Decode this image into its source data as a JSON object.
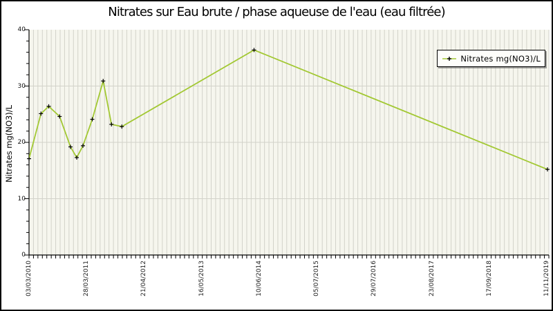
{
  "title": "Nitrates sur Eau brute / phase aqueuse de l'eau (eau filtrée)",
  "legend": {
    "label": "Nitrates mg(NO3)/L"
  },
  "y_axis": {
    "label": "Nitrates mg(NO3)/L",
    "major_ticks": [
      0,
      10,
      20,
      30,
      40
    ],
    "minor_tick_step": 2,
    "range": [
      0,
      40
    ]
  },
  "x_axis": {
    "tick_labels": [
      "03/03/2010",
      "28/03/2011",
      "21/04/2012",
      "16/05/2013",
      "10/06/2014",
      "05/07/2015",
      "29/07/2016",
      "23/08/2017",
      "17/09/2018",
      "11/11/2019"
    ],
    "minor_tick_count": 117
  },
  "colors": {
    "line": "#a2c832",
    "marker": "#000000",
    "plot_background": "#f6f6ee",
    "grid": "#d2d2c9",
    "axis": "#000000",
    "text": "#000000"
  },
  "chart_data": {
    "type": "line",
    "title": "Nitrates sur Eau brute / phase aqueuse de l'eau (eau filtrée)",
    "xlabel": "",
    "ylabel": "Nitrates mg(NO3)/L",
    "ylim": [
      0,
      40
    ],
    "y_major_ticks": [
      0,
      10,
      20,
      30,
      40
    ],
    "y_minor_tick_step": 2,
    "x_tick_labels": [
      "03/03/2010",
      "28/03/2011",
      "21/04/2012",
      "16/05/2013",
      "10/06/2014",
      "05/07/2015",
      "29/07/2016",
      "23/08/2017",
      "17/09/2018",
      "11/11/2019"
    ],
    "grid": true,
    "legend_position": "top-right",
    "marker_style": "plus",
    "series": [
      {
        "name": "Nitrates mg(NO3)/L",
        "points": [
          {
            "x_frac": 0.0,
            "value": 17.1
          },
          {
            "x_frac": 0.023,
            "value": 25.1
          },
          {
            "x_frac": 0.038,
            "value": 26.4
          },
          {
            "x_frac": 0.059,
            "value": 24.6
          },
          {
            "x_frac": 0.08,
            "value": 19.2
          },
          {
            "x_frac": 0.092,
            "value": 17.3
          },
          {
            "x_frac": 0.104,
            "value": 19.4
          },
          {
            "x_frac": 0.122,
            "value": 24.1
          },
          {
            "x_frac": 0.143,
            "value": 30.9
          },
          {
            "x_frac": 0.159,
            "value": 23.2
          },
          {
            "x_frac": 0.179,
            "value": 22.8
          },
          {
            "x_frac": 0.434,
            "value": 36.4
          },
          {
            "x_frac": 1.0,
            "value": 15.2
          }
        ]
      }
    ]
  }
}
